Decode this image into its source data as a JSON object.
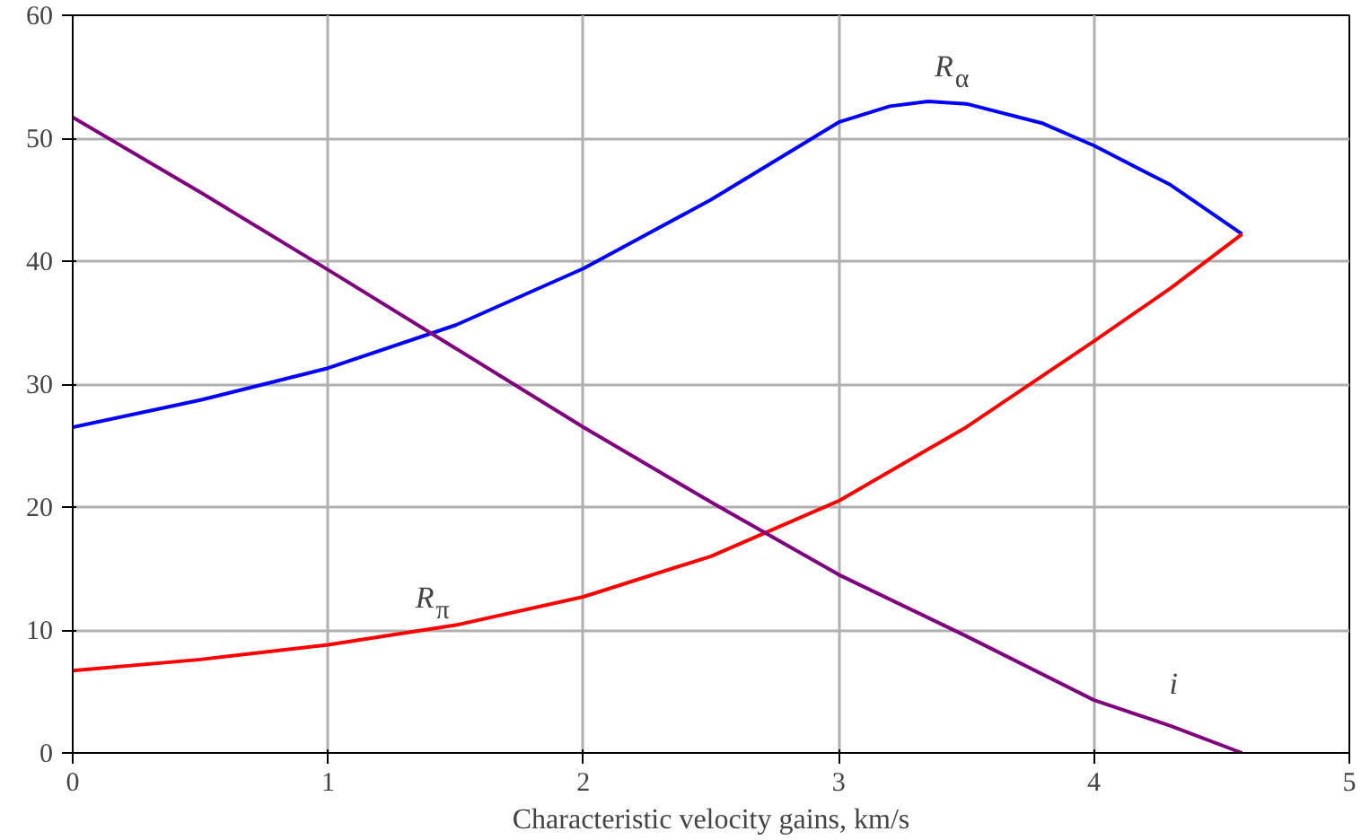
{
  "chart_data": {
    "type": "line",
    "xlabel": "Characteristic velocity gains, km/s",
    "xlim": [
      0,
      5
    ],
    "ylim": [
      0,
      60
    ],
    "xticks": [
      0,
      1,
      2,
      3,
      4,
      5
    ],
    "yticks": [
      0,
      10,
      20,
      30,
      40,
      50,
      60
    ],
    "grid": true,
    "line_style": "solid",
    "marker": "none",
    "series": [
      {
        "color": "#0000ff",
        "x": [
          0,
          0.5,
          1,
          1.5,
          2,
          2.5,
          3,
          3.2,
          3.35,
          3.5,
          3.8,
          4,
          4.3,
          4.58
        ],
        "values": [
          26.5,
          28.7,
          31.3,
          34.8,
          39.4,
          45,
          51.3,
          52.6,
          53,
          52.8,
          51.2,
          49.4,
          46.2,
          42.2
        ]
      },
      {
        "color": "#ff0000",
        "x": [
          0,
          0.5,
          1,
          1.5,
          2,
          2.5,
          3,
          3.5,
          4,
          4.3,
          4.58
        ],
        "values": [
          6.7,
          7.6,
          8.8,
          10.4,
          12.7,
          16,
          20.5,
          26.5,
          33.5,
          37.8,
          42.2
        ]
      },
      {
        "color": "#800080",
        "x": [
          0,
          0.5,
          1,
          1.5,
          2,
          2.5,
          3,
          3.5,
          4,
          4.3,
          4.58
        ],
        "values": [
          51.7,
          45.6,
          39.3,
          32.9,
          26.5,
          20.4,
          14.5,
          9.5,
          4.3,
          2.2,
          0
        ]
      }
    ],
    "annotations": [
      {
        "text": "R$_{α}$",
        "x": 3.35,
        "y": 53
      },
      {
        "text": "R$_{π}$",
        "x": 1.5,
        "y": 10.4
      },
      {
        "text": "i",
        "x": 4.3,
        "y": 2.2
      }
    ]
  }
}
